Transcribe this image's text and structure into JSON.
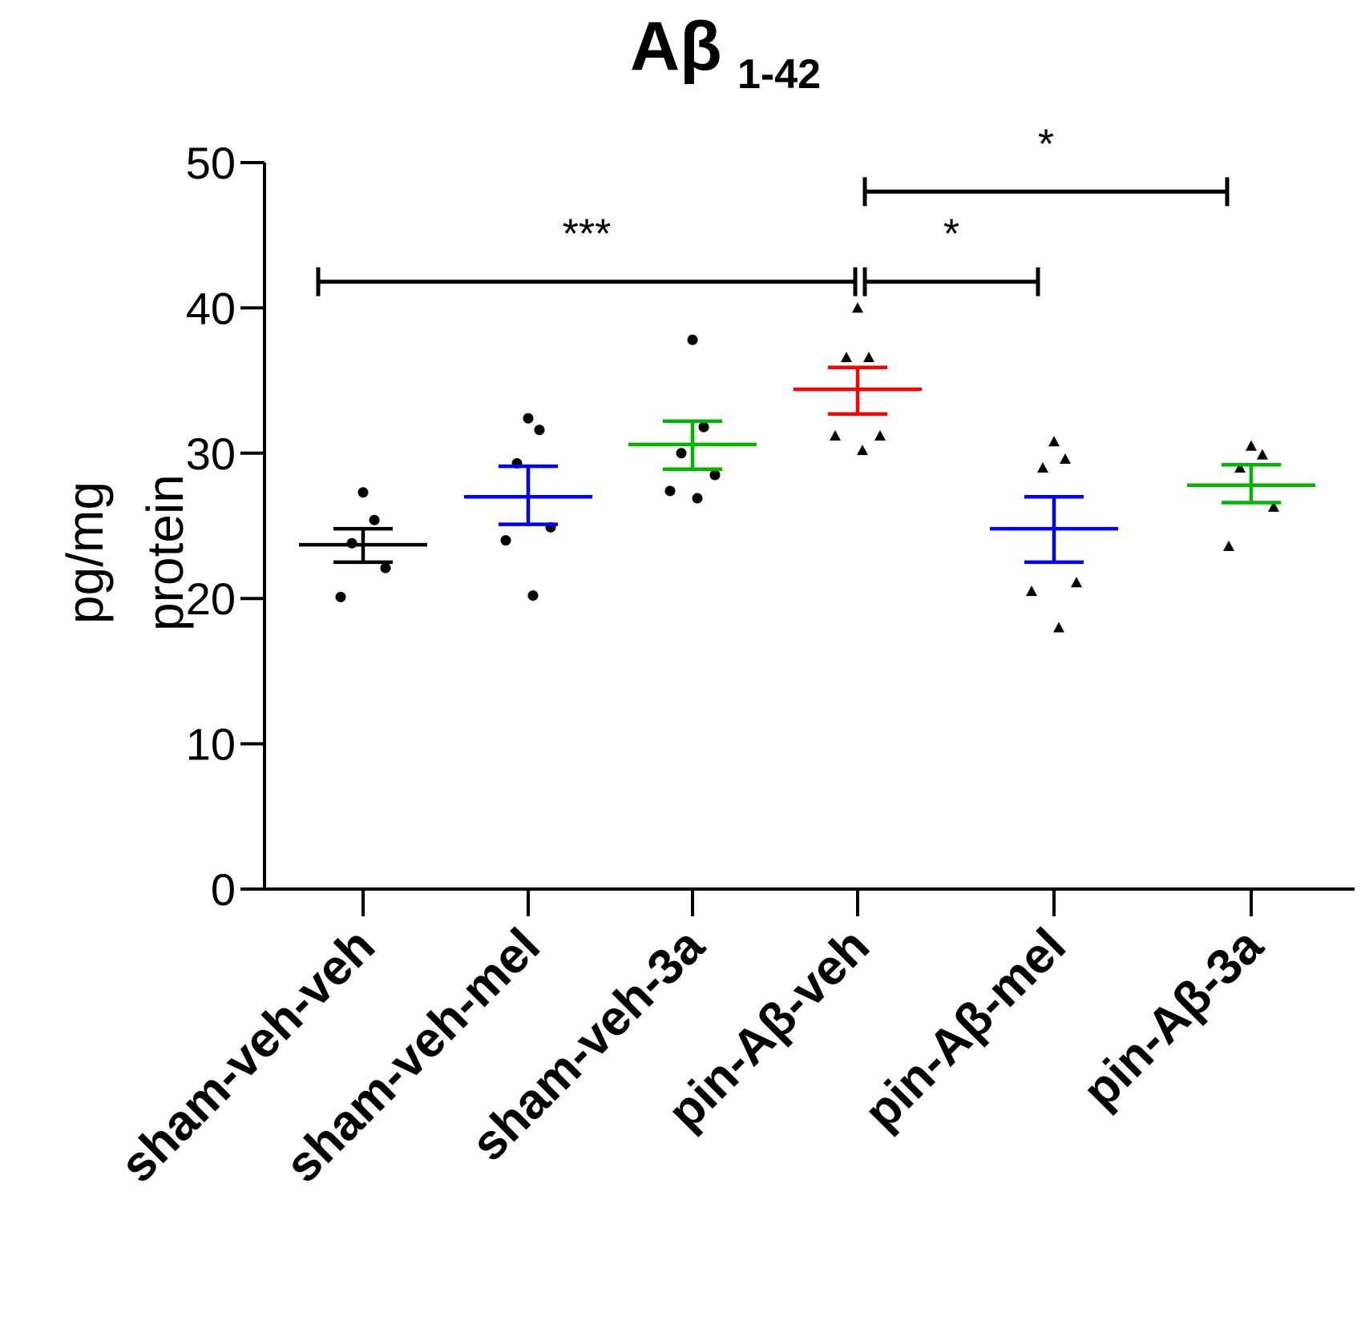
{
  "chart_data": {
    "type": "scatter",
    "title": "Aβ",
    "title_subscript": "1-42",
    "ylabel": "pg/mg protein",
    "xlabel": "",
    "ylim": [
      0,
      50
    ],
    "yticks": [
      0,
      10,
      20,
      30,
      40,
      50
    ],
    "grid": false,
    "categories": [
      "sham-veh-veh",
      "sham-veh-mel",
      "sham-veh-3a",
      "pin-Aβ-veh",
      "pin-Aβ-mel",
      "pin-Aβ-3a"
    ],
    "series": [
      {
        "name": "sham-veh-veh",
        "color": "#000000",
        "marker": "circle",
        "points": [
          27.3,
          25.4,
          23.8,
          22.1,
          20.1
        ],
        "mean": 23.7,
        "sem_low": 22.5,
        "sem_high": 24.8
      },
      {
        "name": "sham-veh-mel",
        "color": "#0000ff",
        "marker": "circle",
        "points": [
          32.4,
          31.6,
          29.3,
          24.9,
          24.0,
          20.2
        ],
        "mean": 27.0,
        "sem_low": 25.1,
        "sem_high": 29.1
      },
      {
        "name": "sham-veh-3a",
        "color": "#00b400",
        "marker": "circle",
        "points": [
          37.8,
          31.8,
          30.0,
          28.5,
          27.4,
          26.9
        ],
        "mean": 30.6,
        "sem_low": 28.9,
        "sem_high": 32.2
      },
      {
        "name": "pin-Aβ-veh",
        "color": "#ff0000",
        "marker": "triangle",
        "points": [
          40.0,
          36.6,
          36.6,
          31.2,
          31.2,
          30.2
        ],
        "mean": 34.4,
        "sem_low": 32.7,
        "sem_high": 35.9
      },
      {
        "name": "pin-Aβ-mel",
        "color": "#0000ff",
        "marker": "triangle",
        "points": [
          30.8,
          29.6,
          29.0,
          21.1,
          20.5,
          18.0
        ],
        "mean": 24.8,
        "sem_low": 22.5,
        "sem_high": 27.0
      },
      {
        "name": "pin-Aβ-3a",
        "color": "#00b400",
        "marker": "triangle",
        "points": [
          30.5,
          29.9,
          29.0,
          26.3,
          23.6
        ],
        "mean": 27.8,
        "sem_low": 26.6,
        "sem_high": 29.2
      }
    ],
    "significance": [
      {
        "from": 0,
        "to": 3,
        "y": 41.8,
        "label": "***"
      },
      {
        "from": 3,
        "to": 4,
        "y": 41.8,
        "label": "*"
      },
      {
        "from": 3,
        "to": 5,
        "y": 48.0,
        "label": "*"
      }
    ]
  }
}
